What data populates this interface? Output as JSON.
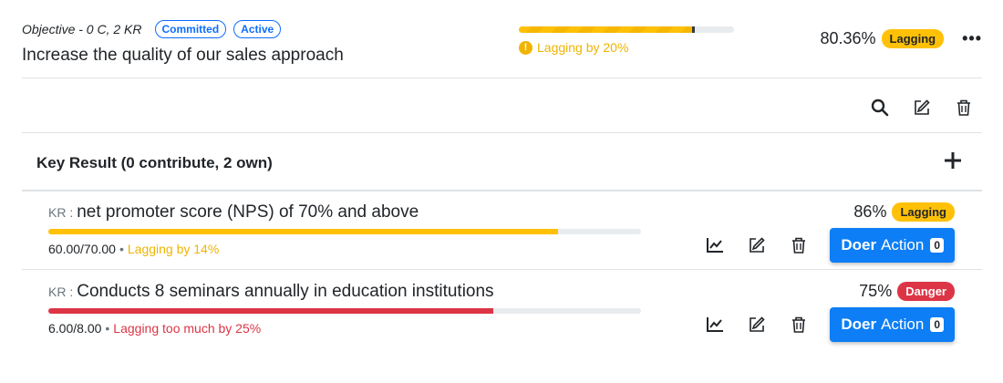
{
  "objective": {
    "meta": "Objective - 0 C, 2 KR",
    "tags": [
      "Committed",
      "Active"
    ],
    "title": "Increase the quality of our sales approach",
    "progress": 0.8036,
    "status_text": "Lagging by 20%",
    "percent": "80.36%",
    "badge": "Lagging",
    "status_color": "#f0b400"
  },
  "key_results_header": {
    "title": "Key Result (0 contribute, 2 own)"
  },
  "key_results": [
    {
      "prefix": "KR :",
      "title": "net promoter score (NPS) of 70% and above",
      "progress": 0.86,
      "value": "60.00/70.00",
      "separator": "•",
      "status_text": "Lagging by 14%",
      "percent": "86%",
      "badge": "Lagging",
      "doer_bold": "Doer",
      "doer_rest": "Action",
      "doer_count": "0"
    },
    {
      "prefix": "KR :",
      "title": "Conducts 8 seminars annually in education institutions",
      "progress": 0.75,
      "value": "6.00/8.00",
      "separator": "•",
      "status_text": "Lagging too much by 25%",
      "percent": "75%",
      "badge": "Danger",
      "doer_bold": "Doer",
      "doer_rest": "Action",
      "doer_count": "0"
    }
  ],
  "icons": {
    "search": "search-icon",
    "edit": "edit-icon",
    "delete": "trash-icon",
    "add": "plus-icon",
    "chart": "line-chart-icon",
    "more": "more-icon"
  },
  "colors": {
    "primary": "#0d7ef5",
    "warning": "#ffc107",
    "danger": "#dc3545"
  }
}
